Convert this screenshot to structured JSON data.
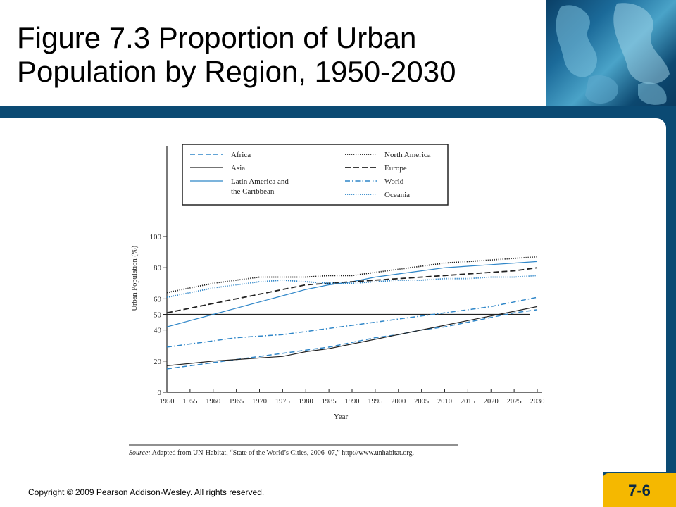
{
  "slide": {
    "title": "Figure 7.3 Proportion of Urban Population by Region, 1950-2030",
    "copyright": "Copyright © 2009 Pearson Addison-Wesley. All rights reserved.",
    "slide_number": "7-6",
    "source_note": {
      "label": "Source:",
      "text": " Adapted from UN-Habitat, “State of the World’s Cities, 2006–07,” http://www.unhabitat.org."
    },
    "colors": {
      "band": "#0b4a73",
      "badge": "#f5b800",
      "black": "#222222",
      "blue": "#2f86c8"
    }
  },
  "chart_data": {
    "type": "line",
    "xlabel": "Year",
    "ylabel": "Urban Population (%)",
    "ylim": [
      0,
      100
    ],
    "y_ticks": [
      0,
      20,
      40,
      50,
      60,
      80,
      100
    ],
    "reference_line": 50,
    "legend_position": "top",
    "x": [
      1950,
      1955,
      1960,
      1965,
      1970,
      1975,
      1980,
      1985,
      1990,
      1995,
      2000,
      2005,
      2010,
      2015,
      2020,
      2025,
      2030
    ],
    "x_tick_labels": [
      "1950",
      "1955",
      "1960",
      "1965",
      "1970",
      "1975",
      "1980",
      "1985",
      "1990",
      "1995",
      "2000",
      "2005",
      "2010",
      "2015",
      "2020",
      "2025",
      "2030"
    ],
    "series": [
      {
        "name": "Africa",
        "style": "dashed-blue",
        "values": [
          15,
          17,
          19,
          21,
          23,
          25,
          27,
          29,
          32,
          35,
          37,
          40,
          42,
          45,
          48,
          51,
          53
        ]
      },
      {
        "name": "Asia",
        "style": "solid-black",
        "values": [
          17,
          18.5,
          20,
          21,
          22,
          23,
          26,
          28,
          31,
          34,
          37,
          40,
          43,
          46,
          49,
          52,
          55
        ]
      },
      {
        "name": "Latin America and the Caribbean",
        "style": "solid-blue",
        "values": [
          42,
          46,
          50,
          54,
          58,
          62,
          66,
          69,
          71,
          74,
          76,
          78,
          80,
          81,
          82,
          83,
          84
        ]
      },
      {
        "name": "North America",
        "style": "dotted-black",
        "values": [
          64,
          67,
          70,
          72,
          74,
          74,
          74,
          75,
          75,
          77,
          79,
          81,
          83,
          84,
          85,
          86,
          87
        ]
      },
      {
        "name": "Europe",
        "style": "dashed-black",
        "values": [
          51,
          54,
          57,
          60,
          63,
          66,
          69,
          70,
          71,
          72,
          73,
          74,
          75,
          76,
          77,
          78,
          80
        ]
      },
      {
        "name": "World",
        "style": "dashdot-blue",
        "values": [
          29,
          31,
          33,
          35,
          36,
          37,
          39,
          41,
          43,
          45,
          47,
          49,
          51,
          53,
          55,
          58,
          61
        ]
      },
      {
        "name": "Oceania",
        "style": "dotted-blue",
        "values": [
          61,
          64,
          67,
          69,
          71,
          72,
          71,
          70,
          70,
          71,
          72,
          72,
          73,
          73,
          74,
          74,
          75
        ]
      }
    ]
  }
}
